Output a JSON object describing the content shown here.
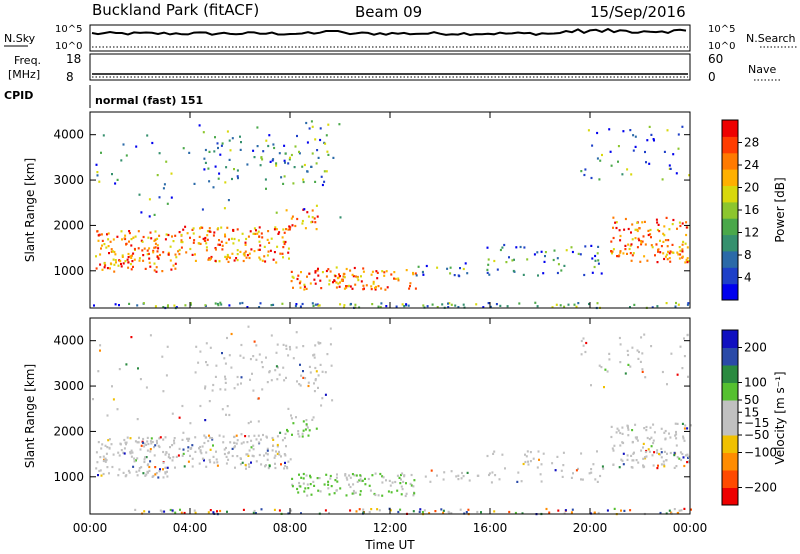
{
  "header": {
    "title": "Buckland Park (fitACF)",
    "beam": "Beam 09",
    "date": "15/Sep/2016"
  },
  "status_panel": {
    "nsky_label": "N.Sky",
    "nsearch_label": "N.Search",
    "noise_ticks": [
      "10^5",
      "10^0"
    ],
    "freq_label": "Freq.",
    "freq_unit": "[MHz]",
    "freq_ticks": [
      "18",
      "8"
    ],
    "nave_label": "Nave",
    "nave_ticks": [
      "60",
      "0"
    ],
    "cpid_label": "CPID",
    "cpid_value": "normal (fast) 151"
  },
  "chart_data": [
    {
      "type": "heatmap",
      "name": "power-panel",
      "xlabel": "",
      "ylabel": "Slant Range [km]",
      "x_ticks": [
        "00:00",
        "04:00",
        "08:00",
        "12:00",
        "16:00",
        "20:00",
        "00:00"
      ],
      "x_tick_hours": [
        0,
        4,
        8,
        12,
        16,
        20,
        24
      ],
      "xlim_hours": [
        0,
        24
      ],
      "y_ticks": [
        1000,
        2000,
        3000,
        4000
      ],
      "ylim": [
        180,
        4500
      ],
      "colorbar": {
        "label": "Power [dB]",
        "ticks": [
          "28",
          "24",
          "20",
          "16",
          "12",
          "8",
          "4"
        ],
        "tick_values": [
          28,
          24,
          20,
          16,
          12,
          8,
          4
        ],
        "range": [
          0,
          32
        ],
        "colors": [
          "#0000ee",
          "#1e40c8",
          "#2b6aa8",
          "#35906e",
          "#4aa84a",
          "#8cc62e",
          "#d8d80c",
          "#ffb000",
          "#ff7a00",
          "#ff3c00",
          "#ee0000"
        ]
      }
    },
    {
      "type": "heatmap",
      "name": "velocity-panel",
      "xlabel": "Time UT",
      "ylabel": "Slant Range [km]",
      "x_ticks": [
        "00:00",
        "04:00",
        "08:00",
        "12:00",
        "16:00",
        "20:00",
        "00:00"
      ],
      "x_tick_hours": [
        0,
        4,
        8,
        12,
        16,
        20,
        24
      ],
      "xlim_hours": [
        0,
        24
      ],
      "y_ticks": [
        1000,
        2000,
        3000,
        4000
      ],
      "ylim": [
        180,
        4500
      ],
      "colorbar": {
        "label": "Velocity [m s⁻¹]",
        "ticks": [
          "200",
          "100",
          "50",
          "15",
          "−15",
          "−50",
          "−100",
          "−200"
        ],
        "tick_values": [
          200,
          100,
          50,
          15,
          -15,
          -50,
          -100,
          -200
        ],
        "range": [
          -250,
          250
        ],
        "colors": [
          "#ee0000",
          "#ff4a00",
          "#ff8c00",
          "#f0c000",
          "#c0c0c0",
          "#c0c0c0",
          "#55c030",
          "#2a8a40",
          "#2a4aa8",
          "#1010c0"
        ]
      }
    }
  ]
}
